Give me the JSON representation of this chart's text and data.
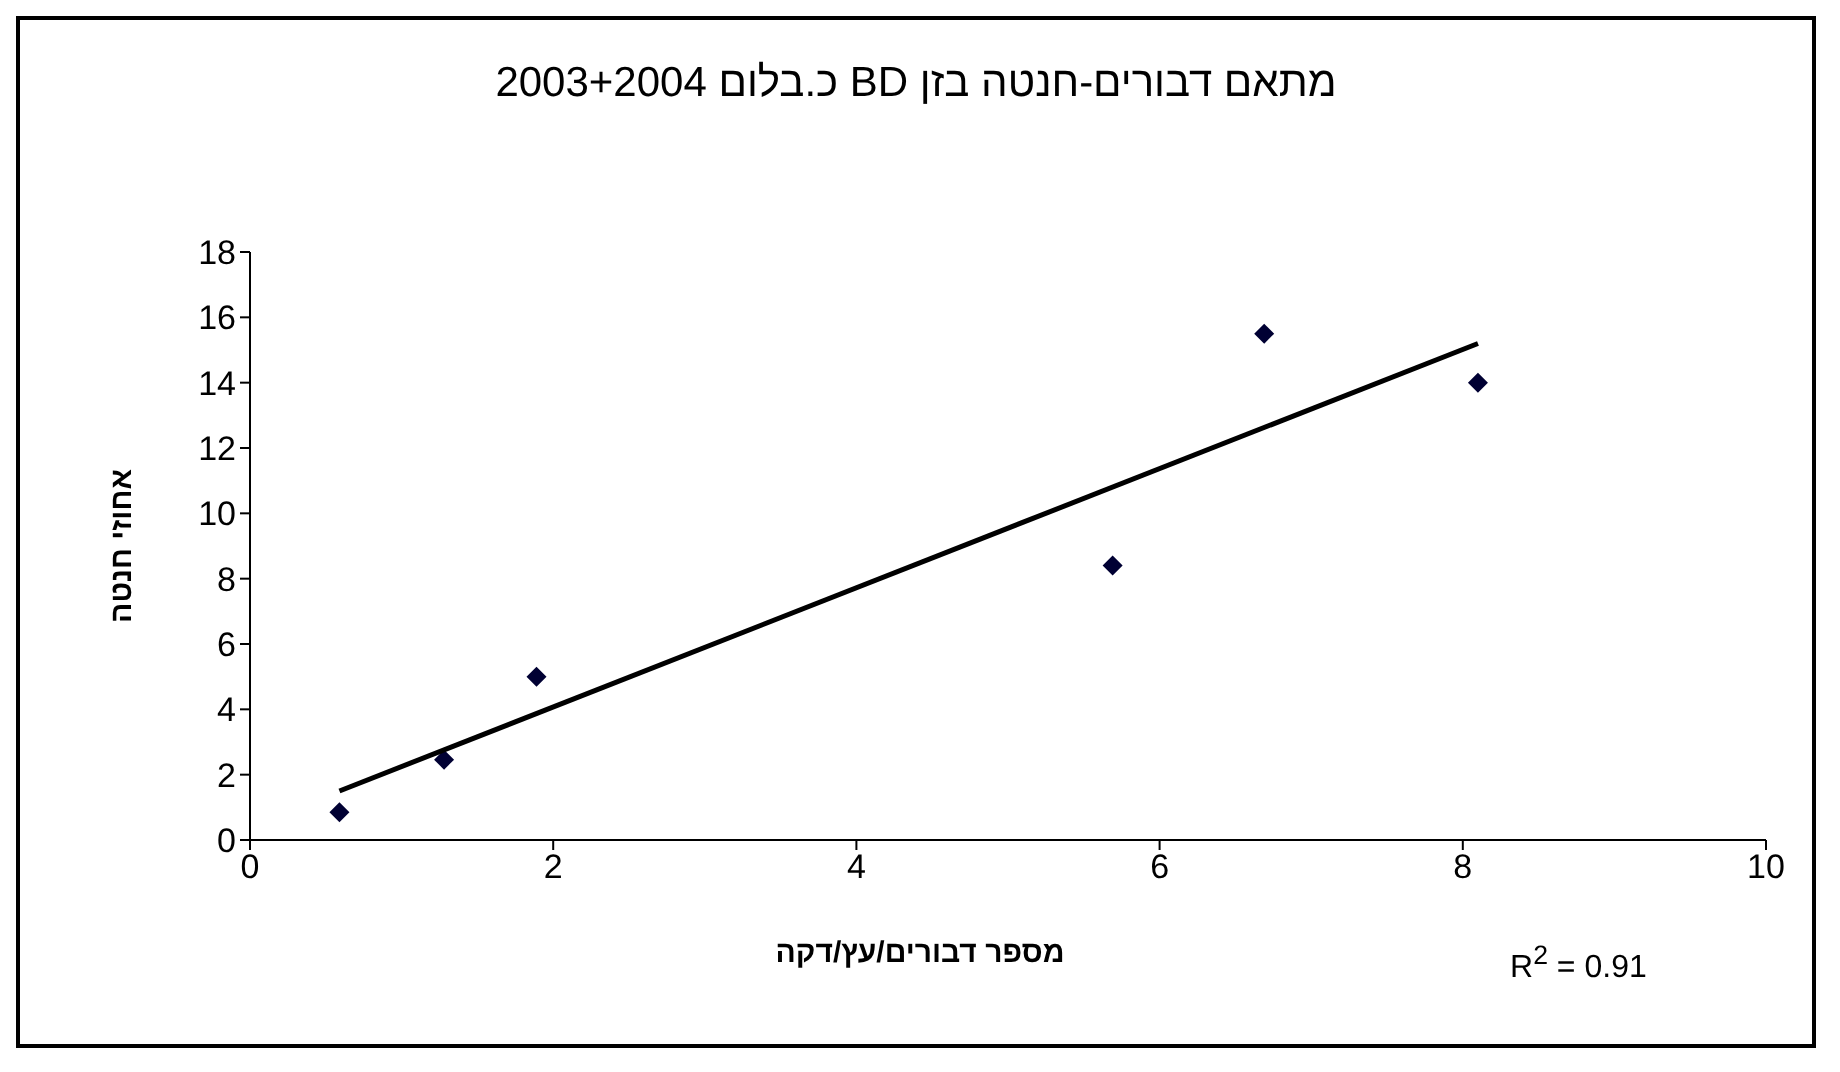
{
  "chart_data": {
    "type": "scatter",
    "title": "מתאם דבורים-חנטה בזן BD כ.בלום 2003+2004",
    "xlabel": "מספר דבורים/עץ/דקה",
    "ylabel": "אחוזי חנטה",
    "annotations": [
      "R$^{2}$ = 0.91"
    ],
    "x": [
      0.59,
      1.28,
      1.89,
      5.69,
      6.69,
      8.1
    ],
    "series": [
      {
        "color": "#000033",
        "values": [
          0.85,
          2.46,
          5.0,
          8.4,
          15.5,
          14.0
        ],
        "marker": "diamond"
      },
      {
        "type": "line",
        "color": "#000000",
        "x": [
          0.59,
          8.1
        ],
        "values": [
          1.5,
          15.2
        ],
        "marker": "none",
        "line_style": "solid"
      }
    ],
    "xlim": [
      0,
      10
    ],
    "xticks": [
      0,
      2,
      4,
      6,
      8,
      10
    ],
    "ylim": [
      0,
      18
    ],
    "yticks": [
      0,
      2,
      4,
      6,
      8,
      10,
      12,
      14,
      16,
      18
    ]
  }
}
